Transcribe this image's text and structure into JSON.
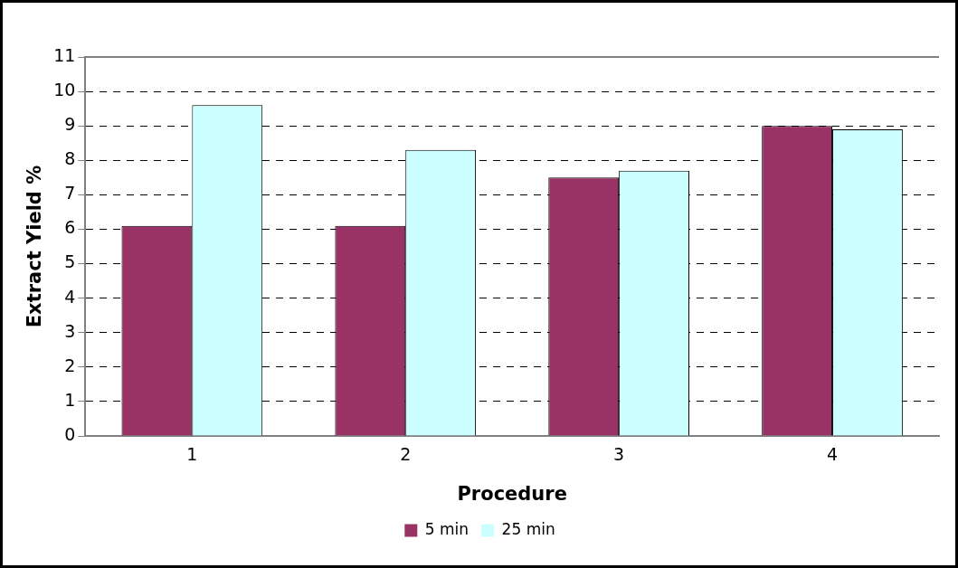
{
  "chart_data": {
    "type": "bar",
    "xlabel": "Procedure",
    "ylabel": "Extract Yield %",
    "categories": [
      "1",
      "2",
      "3",
      "4"
    ],
    "series": [
      {
        "name": "5 min",
        "color": "#993366",
        "values": [
          6.1,
          6.1,
          7.5,
          9.0
        ]
      },
      {
        "name": "25 min",
        "color": "#ccffff",
        "values": [
          9.6,
          8.3,
          7.7,
          8.9
        ]
      }
    ],
    "ylim": [
      0,
      11
    ],
    "yticks": [
      0,
      1,
      2,
      3,
      4,
      5,
      6,
      7,
      8,
      9,
      10,
      11
    ],
    "grid": "y",
    "legend": "bottom"
  }
}
